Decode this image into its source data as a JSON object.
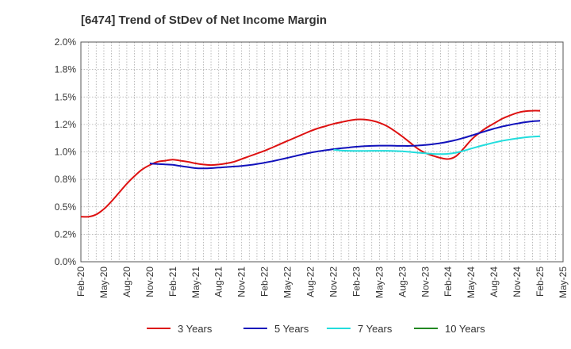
{
  "chart_data": {
    "type": "line",
    "title": "[6474]  Trend of StDev of Net Income Margin",
    "xlabel": "",
    "ylabel": "",
    "x_tick_labels": [
      "Feb-20",
      "May-20",
      "Aug-20",
      "Nov-20",
      "Feb-21",
      "May-21",
      "Aug-21",
      "Nov-21",
      "Feb-22",
      "May-22",
      "Aug-22",
      "Nov-22",
      "Feb-23",
      "May-23",
      "Aug-23",
      "Nov-23",
      "Feb-24",
      "May-24",
      "Aug-24",
      "Nov-24",
      "Feb-25",
      "May-25"
    ],
    "y_tick_labels": [
      "0.0%",
      "0.2%",
      "0.5%",
      "0.8%",
      "1.0%",
      "1.2%",
      "1.5%",
      "1.8%",
      "2.0%"
    ],
    "ylim": [
      0,
      2.0
    ],
    "y_unit": "%",
    "grid": true,
    "legend_position": "bottom",
    "series": [
      {
        "name": "3 Years",
        "color": "#dd1111",
        "points": [
          [
            "Feb-20",
            0.41
          ],
          [
            "Mar-20",
            0.41
          ],
          [
            "Apr-20",
            0.43
          ],
          [
            "May-20",
            0.48
          ],
          [
            "Jun-20",
            0.55
          ],
          [
            "Jul-20",
            0.63
          ],
          [
            "Aug-20",
            0.71
          ],
          [
            "Sep-20",
            0.78
          ],
          [
            "Oct-20",
            0.84
          ],
          [
            "Nov-20",
            0.88
          ],
          [
            "Dec-20",
            0.91
          ],
          [
            "Jan-21",
            0.92
          ],
          [
            "Feb-21",
            0.93
          ],
          [
            "Mar-21",
            0.92
          ],
          [
            "Apr-21",
            0.91
          ],
          [
            "May-21",
            0.895
          ],
          [
            "Jun-21",
            0.885
          ],
          [
            "Jul-21",
            0.88
          ],
          [
            "Aug-21",
            0.885
          ],
          [
            "Sep-21",
            0.895
          ],
          [
            "Oct-21",
            0.91
          ],
          [
            "Nov-21",
            0.935
          ],
          [
            "Dec-21",
            0.96
          ],
          [
            "Jan-22",
            0.985
          ],
          [
            "Feb-22",
            1.01
          ],
          [
            "Mar-22",
            1.04
          ],
          [
            "Apr-22",
            1.07
          ],
          [
            "May-22",
            1.1
          ],
          [
            "Jun-22",
            1.13
          ],
          [
            "Jul-22",
            1.16
          ],
          [
            "Aug-22",
            1.19
          ],
          [
            "Sep-22",
            1.215
          ],
          [
            "Oct-22",
            1.235
          ],
          [
            "Nov-22",
            1.255
          ],
          [
            "Dec-22",
            1.27
          ],
          [
            "Jan-23",
            1.285
          ],
          [
            "Feb-23",
            1.295
          ],
          [
            "Mar-23",
            1.295
          ],
          [
            "Apr-23",
            1.285
          ],
          [
            "May-23",
            1.265
          ],
          [
            "Jun-23",
            1.235
          ],
          [
            "Jul-23",
            1.19
          ],
          [
            "Aug-23",
            1.14
          ],
          [
            "Sep-23",
            1.085
          ],
          [
            "Oct-23",
            1.03
          ],
          [
            "Nov-23",
            0.99
          ],
          [
            "Dec-23",
            0.965
          ],
          [
            "Jan-24",
            0.945
          ],
          [
            "Feb-24",
            0.935
          ],
          [
            "Mar-24",
            0.96
          ],
          [
            "Apr-24",
            1.03
          ],
          [
            "May-24",
            1.11
          ],
          [
            "Jun-24",
            1.17
          ],
          [
            "Jul-24",
            1.22
          ],
          [
            "Aug-24",
            1.26
          ],
          [
            "Sep-24",
            1.3
          ],
          [
            "Oct-24",
            1.33
          ],
          [
            "Nov-24",
            1.355
          ],
          [
            "Dec-24",
            1.37
          ],
          [
            "Jan-25",
            1.375
          ],
          [
            "Feb-25",
            1.375
          ]
        ]
      },
      {
        "name": "5 Years",
        "color": "#1111bb",
        "points": [
          [
            "Nov-20",
            0.895
          ],
          [
            "Dec-20",
            0.89
          ],
          [
            "Jan-21",
            0.887
          ],
          [
            "Feb-21",
            0.882
          ],
          [
            "Mar-21",
            0.872
          ],
          [
            "Apr-21",
            0.862
          ],
          [
            "May-21",
            0.852
          ],
          [
            "Jun-21",
            0.85
          ],
          [
            "Jul-21",
            0.852
          ],
          [
            "Aug-21",
            0.857
          ],
          [
            "Sep-21",
            0.862
          ],
          [
            "Oct-21",
            0.867
          ],
          [
            "Nov-21",
            0.872
          ],
          [
            "Dec-21",
            0.88
          ],
          [
            "Jan-22",
            0.89
          ],
          [
            "Feb-22",
            0.902
          ],
          [
            "Mar-22",
            0.915
          ],
          [
            "Apr-22",
            0.93
          ],
          [
            "May-22",
            0.946
          ],
          [
            "Jun-22",
            0.962
          ],
          [
            "Jul-22",
            0.978
          ],
          [
            "Aug-22",
            0.993
          ],
          [
            "Sep-22",
            1.005
          ],
          [
            "Oct-22",
            1.015
          ],
          [
            "Nov-22",
            1.025
          ],
          [
            "Dec-22",
            1.033
          ],
          [
            "Jan-23",
            1.04
          ],
          [
            "Feb-23",
            1.047
          ],
          [
            "Mar-23",
            1.052
          ],
          [
            "Apr-23",
            1.055
          ],
          [
            "May-23",
            1.057
          ],
          [
            "Jun-23",
            1.057
          ],
          [
            "Jul-23",
            1.056
          ],
          [
            "Aug-23",
            1.055
          ],
          [
            "Sep-23",
            1.055
          ],
          [
            "Oct-23",
            1.058
          ],
          [
            "Nov-23",
            1.063
          ],
          [
            "Dec-23",
            1.07
          ],
          [
            "Jan-24",
            1.08
          ],
          [
            "Feb-24",
            1.093
          ],
          [
            "Mar-24",
            1.108
          ],
          [
            "Apr-24",
            1.127
          ],
          [
            "May-24",
            1.148
          ],
          [
            "Jun-24",
            1.17
          ],
          [
            "Jul-24",
            1.192
          ],
          [
            "Aug-24",
            1.212
          ],
          [
            "Sep-24",
            1.23
          ],
          [
            "Oct-24",
            1.245
          ],
          [
            "Nov-24",
            1.258
          ],
          [
            "Dec-24",
            1.27
          ],
          [
            "Jan-25",
            1.278
          ],
          [
            "Feb-25",
            1.283
          ]
        ]
      },
      {
        "name": "7 Years",
        "color": "#22dddd",
        "points": [
          [
            "Nov-22",
            1.02
          ],
          [
            "Dec-22",
            1.013
          ],
          [
            "Jan-23",
            1.01
          ],
          [
            "Feb-23",
            1.009
          ],
          [
            "Mar-23",
            1.009
          ],
          [
            "Apr-23",
            1.01
          ],
          [
            "May-23",
            1.01
          ],
          [
            "Jun-23",
            1.01
          ],
          [
            "Jul-23",
            1.008
          ],
          [
            "Aug-23",
            1.005
          ],
          [
            "Sep-23",
            1.0
          ],
          [
            "Oct-23",
            0.993
          ],
          [
            "Nov-23",
            0.987
          ],
          [
            "Dec-23",
            0.982
          ],
          [
            "Jan-24",
            0.98
          ],
          [
            "Feb-24",
            0.983
          ],
          [
            "Mar-24",
            0.993
          ],
          [
            "Apr-24",
            1.01
          ],
          [
            "May-24",
            1.03
          ],
          [
            "Jun-24",
            1.05
          ],
          [
            "Jul-24",
            1.068
          ],
          [
            "Aug-24",
            1.085
          ],
          [
            "Sep-24",
            1.1
          ],
          [
            "Oct-24",
            1.112
          ],
          [
            "Nov-24",
            1.123
          ],
          [
            "Dec-24",
            1.132
          ],
          [
            "Jan-25",
            1.138
          ],
          [
            "Feb-25",
            1.143
          ]
        ]
      },
      {
        "name": "10 Years",
        "color": "#228822",
        "points": []
      }
    ]
  }
}
